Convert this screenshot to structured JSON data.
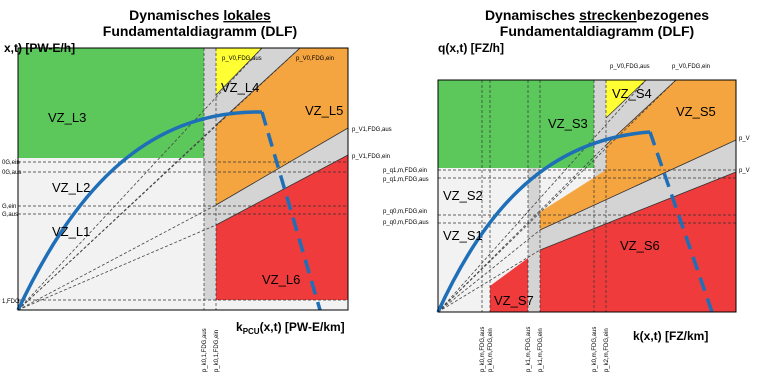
{
  "left": {
    "title_line1_pre": "Dynamisches ",
    "title_line1_u": "lokales",
    "title_line2": "Fundamentaldiagramm (DLF)",
    "y_axis_label": "x,t) [PW-E/h]",
    "x_axis_label_k": "k",
    "x_axis_label_sub": "PCU",
    "x_axis_label_rest": "(x,t) [PW-E/km]",
    "zones": [
      "VZ_L3",
      "VZ_L4",
      "VZ_L5",
      "VZ_L2",
      "VZ_L1",
      "VZ_L6"
    ],
    "top_labels": [
      "p_V0,FDG,aus",
      "p_V0,FDG,ein"
    ],
    "right_labels": [
      "p_V1,FDG,aus",
      "p_V1,FDG,ein"
    ],
    "left_edge_labels": [
      "0G,ein",
      "0G,aus",
      "G,ein",
      "G,aus",
      "1,FDG"
    ],
    "bottom_labels": [
      "p_k0,1,FDG,aus",
      "p_k0,1,FDG,ein"
    ]
  },
  "right": {
    "title_line1_pre": "Dynamisches ",
    "title_line1_u": "strecken",
    "title_line1_post": "bezogenes",
    "title_line2": "Fundamentaldiagramm (DLF)",
    "y_axis_label": "q(x,t) [FZ/h]",
    "x_axis_label": "k(x,t) [FZ/km]",
    "zones": [
      "VZ_S3",
      "VZ_S4",
      "VZ_S5",
      "VZ_S2",
      "VZ_S1",
      "VZ_S6",
      "VZ_S7"
    ],
    "top_labels": [
      "p_V0,FDG,aus",
      "p_V0,FDG,ein"
    ],
    "right_labels": [
      "p_V",
      "p_V"
    ],
    "left_labels": [
      "p_q1,m,FDG,ein",
      "p_q1,m,FDG,aus",
      "p_q0,m,FDG,ein",
      "p_q0,m,FDG,aus"
    ],
    "bottom_labels": [
      "p_k0,m,FDG,aus",
      "p_k0,m,FDG,ein",
      "p_k1,m,FDG,aus",
      "p_k1,m,FDG,ein",
      "p_k0,m,FDG,aus",
      "p_k2,m,FDG,ein"
    ]
  },
  "colors": {
    "green": "#5cc85c",
    "yellow": "#ffff33",
    "orange": "#f5a540",
    "red": "#ef3b3b",
    "light_gray": "#f2f2f2",
    "mid_gray": "#d4d4d4",
    "curve": "#1f6fb8"
  }
}
